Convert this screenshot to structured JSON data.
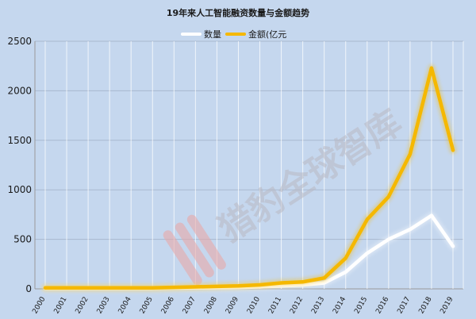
{
  "chart_data": {
    "type": "line",
    "title": "19年来人工智能融资数量与金额趋势",
    "x": [
      "2000",
      "2001",
      "2002",
      "2003",
      "2004",
      "2005",
      "2006",
      "2007",
      "2008",
      "2009",
      "2010",
      "2011",
      "2012",
      "2013",
      "2014",
      "2015",
      "2016",
      "2017",
      "2018",
      "2019"
    ],
    "series": [
      {
        "name": "数量",
        "color": "#ffffff",
        "values": [
          5,
          5,
          5,
          5,
          5,
          5,
          8,
          10,
          12,
          15,
          20,
          30,
          40,
          60,
          170,
          360,
          500,
          600,
          740,
          430
        ]
      },
      {
        "name": "金额(亿元",
        "color": "#f5b800",
        "values": [
          10,
          10,
          10,
          10,
          10,
          10,
          15,
          20,
          25,
          30,
          40,
          60,
          70,
          110,
          310,
          700,
          930,
          1360,
          2230,
          1400
        ]
      }
    ],
    "yticks": [
      "0",
      "500",
      "1000",
      "1500",
      "2000",
      "2500"
    ],
    "ylim": [
      0,
      2500
    ],
    "grid": true,
    "legend": "top-center"
  },
  "watermark": "猎豹全球智库"
}
